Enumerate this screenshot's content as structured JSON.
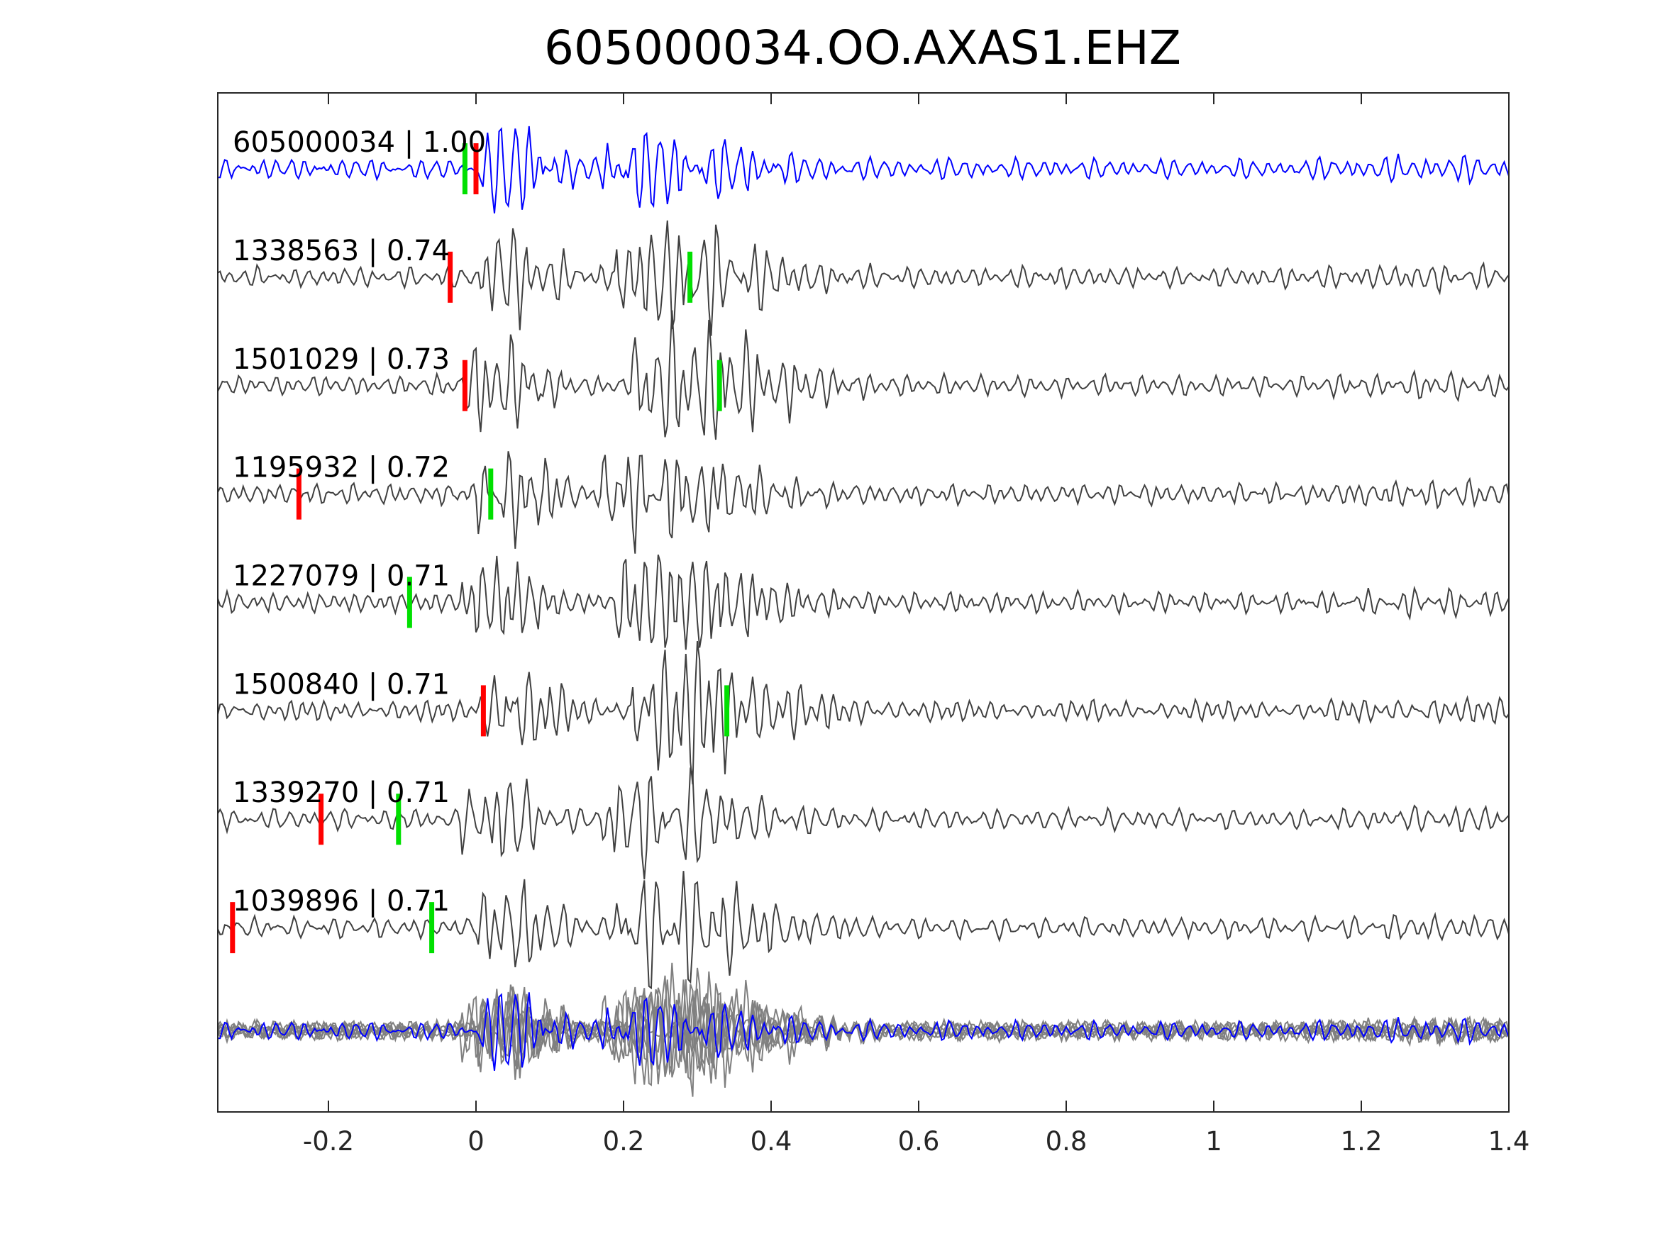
{
  "chart_data": {
    "type": "line",
    "title": "605000034.OO.AXAS1.EHZ",
    "xlabel": "",
    "ylabel": "",
    "xlim": [
      -0.35,
      1.4
    ],
    "xticks": [
      -0.2,
      0,
      0.2,
      0.4,
      0.6,
      0.8,
      1,
      1.2,
      1.4
    ],
    "xtick_labels": [
      "-0.2",
      "0",
      "0.2",
      "0.4",
      "0.6",
      "0.8",
      "1",
      "1.2",
      "1.4"
    ],
    "grid": false,
    "colors": {
      "template": "#0000ff",
      "match": "#404040",
      "overlay": "#808080",
      "p_pick": "#ff0000",
      "s_pick": "#00e000"
    },
    "traces": [
      {
        "label": "605000034 | 1.00",
        "p_pick": 0.0,
        "s_pick": -0.015,
        "template": true
      },
      {
        "label": "1338563 | 0.74",
        "p_pick": -0.035,
        "s_pick": 0.29
      },
      {
        "label": "1501029 | 0.73",
        "p_pick": -0.015,
        "s_pick": 0.33
      },
      {
        "label": "1195932 | 0.72",
        "p_pick": -0.24,
        "s_pick": 0.02
      },
      {
        "label": "1227079 | 0.71",
        "s_pick": -0.09
      },
      {
        "label": "1500840 | 0.71",
        "p_pick": 0.01,
        "s_pick": 0.34
      },
      {
        "label": "1339270 | 0.71",
        "p_pick": -0.21,
        "s_pick": -0.105
      },
      {
        "label": "1039896 | 0.71",
        "p_pick": -0.33,
        "s_pick": -0.06
      }
    ]
  }
}
